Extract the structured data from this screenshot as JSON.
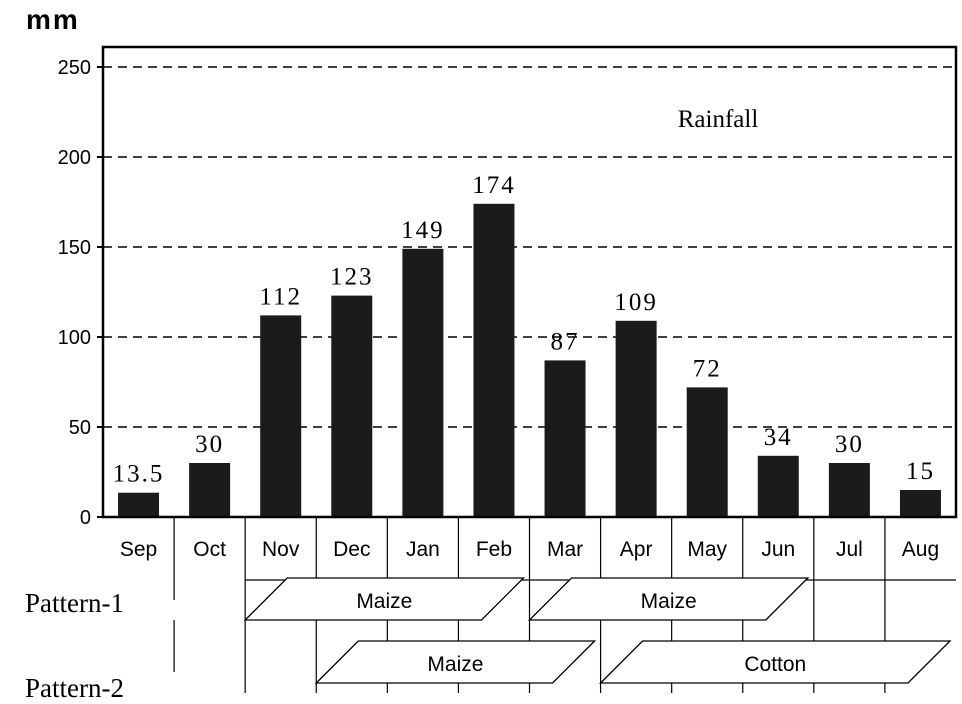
{
  "chart_data": {
    "type": "bar",
    "unit_label": "mm",
    "series_label": "Rainfall",
    "categories": [
      "Sep",
      "Oct",
      "Nov",
      "Dec",
      "Jan",
      "Feb",
      "Mar",
      "Apr",
      "May",
      "Jun",
      "Jul",
      "Aug"
    ],
    "values": [
      13.5,
      30,
      112,
      123,
      149,
      174,
      87,
      109,
      72,
      34,
      30,
      15
    ],
    "value_labels": [
      "13.5",
      "30",
      "112",
      "123",
      "149",
      "174",
      "87",
      "109",
      "72",
      "34",
      "30",
      "15"
    ],
    "y_ticks": [
      0,
      50,
      100,
      150,
      200,
      250
    ],
    "ylim": [
      0,
      260
    ],
    "bar_color": "#1b1b1b",
    "grid": "dashed, at y ticks",
    "crop_patterns": [
      {
        "name": "Pattern-1",
        "crops": [
          {
            "crop": "Maize",
            "from": "Nov",
            "to": "Feb"
          },
          {
            "crop": "Maize",
            "from": "Mar",
            "to": "Jun"
          }
        ]
      },
      {
        "name": "Pattern-2",
        "crops": [
          {
            "crop": "Maize",
            "from": "Dec",
            "to": "Mar"
          },
          {
            "crop": "Cotton",
            "from": "Apr",
            "to": "Aug"
          }
        ]
      }
    ]
  }
}
